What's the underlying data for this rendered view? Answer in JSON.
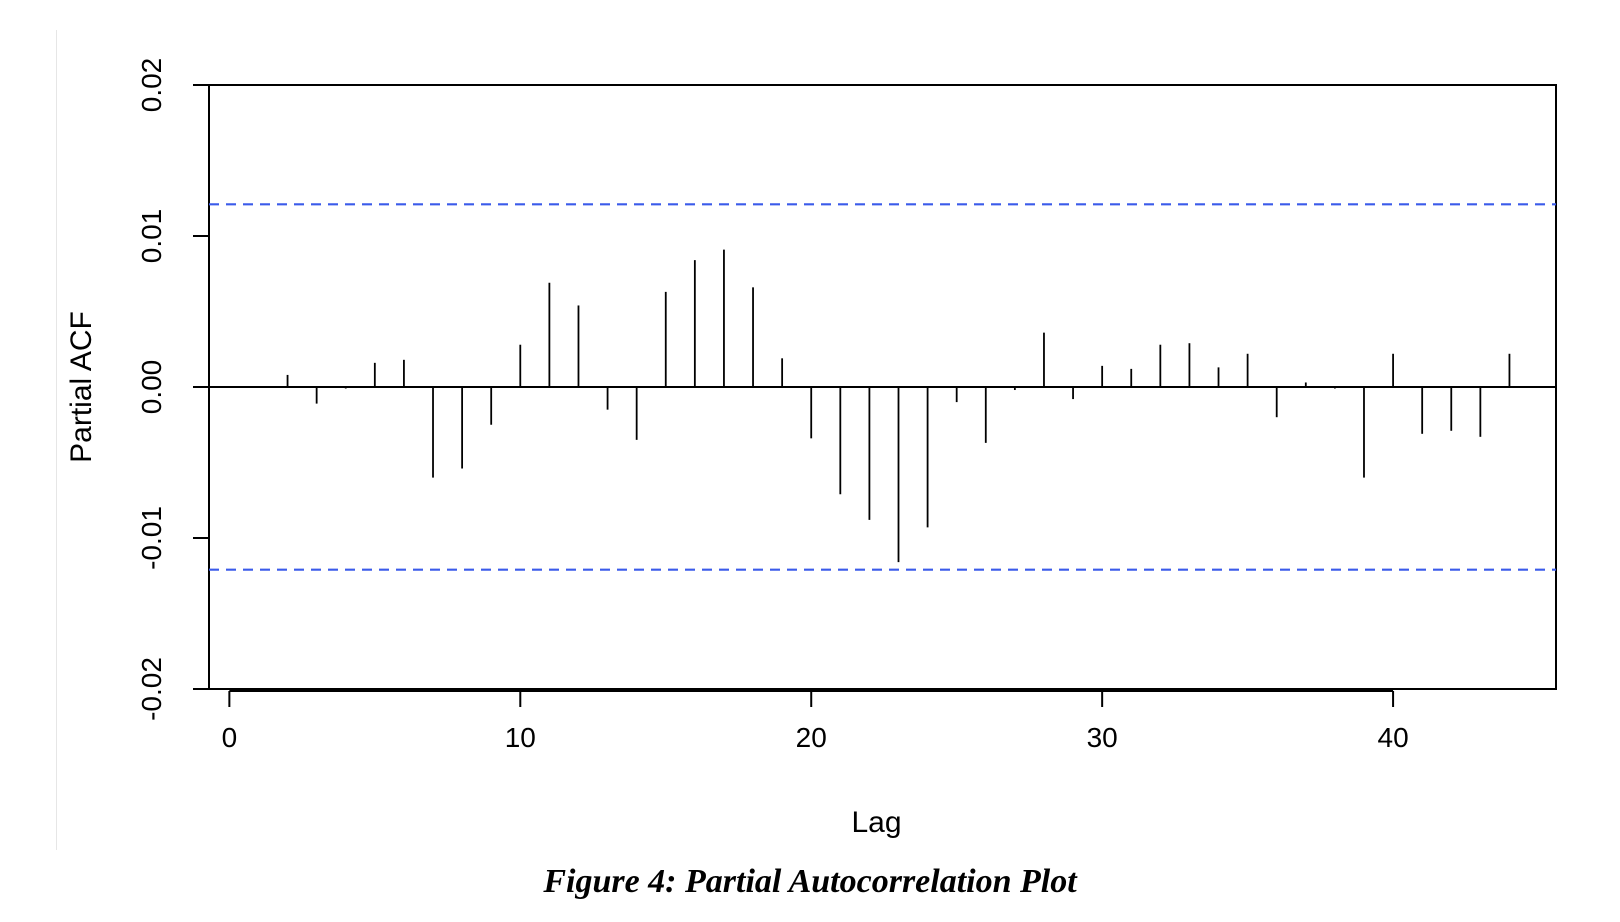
{
  "figure_caption": "Figure 4: Partial Autocorrelation Plot",
  "chart_data": {
    "type": "bar",
    "xlabel": "Lag",
    "ylabel": "Partial ACF",
    "xlim": [
      -0.7,
      45.6
    ],
    "ylim": [
      -0.02,
      0.02
    ],
    "x_ticks": [
      0,
      10,
      20,
      30,
      40
    ],
    "x_tick_labels": [
      "0",
      "10",
      "20",
      "30",
      "40"
    ],
    "y_ticks": [
      -0.02,
      -0.01,
      0.0,
      0.01,
      0.02
    ],
    "y_tick_labels": [
      "-0.02",
      "-0.01",
      "0.00",
      "0.01",
      "0.02"
    ],
    "confidence_bounds": [
      0.0121,
      -0.0121
    ],
    "confidence_color": "#3b5bea",
    "bar_color": "#000000",
    "grid": false,
    "lags": [
      1,
      2,
      3,
      4,
      5,
      6,
      7,
      8,
      9,
      10,
      11,
      12,
      13,
      14,
      15,
      16,
      17,
      18,
      19,
      20,
      21,
      22,
      23,
      24,
      25,
      26,
      27,
      28,
      29,
      30,
      31,
      32,
      33,
      34,
      35,
      36,
      37,
      38,
      39,
      40,
      41,
      42,
      43,
      44
    ],
    "values": [
      0.0,
      0.0008,
      -0.0011,
      -0.0001,
      0.0016,
      0.0018,
      -0.006,
      -0.0054,
      -0.0025,
      0.0028,
      0.0069,
      0.0054,
      -0.0015,
      -0.0035,
      0.0063,
      0.0084,
      0.0091,
      0.0066,
      0.0019,
      -0.0034,
      -0.0071,
      -0.0088,
      -0.0116,
      -0.0093,
      -0.001,
      -0.0037,
      -0.0002,
      0.0036,
      -0.0008,
      0.0014,
      0.0012,
      0.0028,
      0.0029,
      0.0013,
      0.0022,
      -0.002,
      0.0003,
      -0.0001,
      -0.006,
      0.0022,
      -0.0031,
      -0.0029,
      -0.0033,
      0.0022
    ]
  }
}
